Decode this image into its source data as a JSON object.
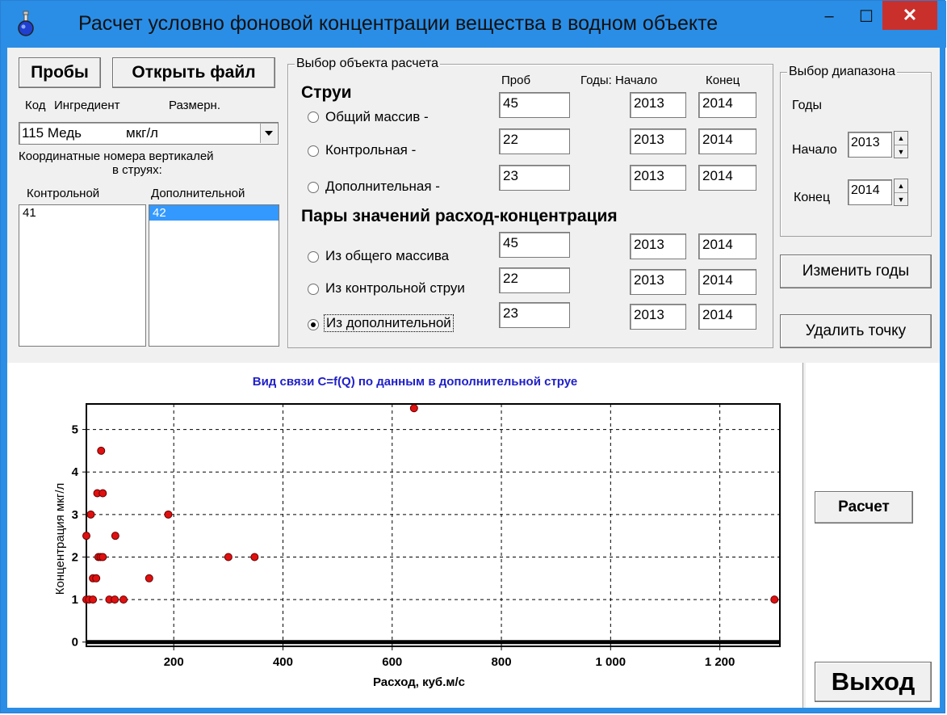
{
  "window": {
    "title": "Расчет условно фоновой концентрации вещества в водном объекте",
    "min": "–",
    "max": "☐",
    "close": "✕"
  },
  "left": {
    "btn_samples": "Пробы",
    "btn_open": "Открыть файл",
    "col_code": "Код",
    "col_ingredient": "Ингредиент",
    "col_units": "Размерн.",
    "combo_value": "115 Медь",
    "combo_units": "мкг/л",
    "coord_line1": "Координатные номера вертикалей",
    "coord_line2": "в струях:",
    "col_control": "Контрольной",
    "col_additional": "Дополнительной",
    "list_control": [
      "41"
    ],
    "list_additional": [
      "42"
    ]
  },
  "obj": {
    "group_title": "Выбор объекта расчета",
    "hdr_samples": "Проб",
    "hdr_years_start": "Годы: Начало",
    "hdr_end": "Конец",
    "jets_title": "Струи",
    "pairs_title": "Пары значений расход-концентрация",
    "rows": [
      {
        "label": "Общий массив -",
        "samples": "45",
        "start": "2013",
        "end": "2014",
        "checked": false
      },
      {
        "label": "Контрольная -",
        "samples": "22",
        "start": "2013",
        "end": "2014",
        "checked": false
      },
      {
        "label": "Дополнительная -",
        "samples": "23",
        "start": "2013",
        "end": "2014",
        "checked": false
      },
      {
        "label": "Из общего массива",
        "samples": "45",
        "start": "2013",
        "end": "2014",
        "checked": false
      },
      {
        "label": "Из контрольной струи",
        "samples": "22",
        "start": "2013",
        "end": "2014",
        "checked": false
      },
      {
        "label": "Из дополнительной",
        "samples": "23",
        "start": "2013",
        "end": "2014",
        "checked": true
      }
    ]
  },
  "range": {
    "group_title": "Выбор диапазона",
    "years": "Годы",
    "start_label": "Начало",
    "start_value": "2013",
    "end_label": "Конец",
    "end_value": "2014"
  },
  "buttons": {
    "change_years": "Изменить годы",
    "delete_point": "Удалить точку",
    "calc": "Расчет",
    "exit": "Выход"
  },
  "chart_data": {
    "type": "scatter",
    "title": "Вид связи C=f(Q) по данным в дополнительной струе",
    "xlabel": "Расход, куб.м/с",
    "ylabel": "Концентрация мкг/л",
    "xlim": [
      40,
      1310
    ],
    "ylim": [
      -0.1,
      5.6
    ],
    "xticks": [
      200,
      400,
      600,
      800,
      1000,
      1200
    ],
    "xtick_labels": [
      "200",
      "400",
      "600",
      "800",
      "1 000",
      "1 200"
    ],
    "yticks": [
      0,
      1,
      2,
      3,
      4,
      5
    ],
    "ytick_labels": [
      "0",
      "1",
      "2",
      "3",
      "4",
      "5"
    ],
    "grid": true,
    "baseline_y": 0,
    "point_color": "#e01010",
    "points": [
      {
        "x": 640,
        "y": 5.5
      },
      {
        "x": 67,
        "y": 4.5
      },
      {
        "x": 60,
        "y": 3.5
      },
      {
        "x": 70,
        "y": 3.5
      },
      {
        "x": 48,
        "y": 3.0
      },
      {
        "x": 190,
        "y": 3.0
      },
      {
        "x": 40,
        "y": 2.5
      },
      {
        "x": 93,
        "y": 2.5
      },
      {
        "x": 62,
        "y": 2.0
      },
      {
        "x": 66,
        "y": 2.0
      },
      {
        "x": 70,
        "y": 2.0
      },
      {
        "x": 300,
        "y": 2.0
      },
      {
        "x": 348,
        "y": 2.0
      },
      {
        "x": 52,
        "y": 1.5
      },
      {
        "x": 58,
        "y": 1.5
      },
      {
        "x": 155,
        "y": 1.5
      },
      {
        "x": 40,
        "y": 1.0
      },
      {
        "x": 45,
        "y": 1.0
      },
      {
        "x": 52,
        "y": 1.0
      },
      {
        "x": 82,
        "y": 1.0
      },
      {
        "x": 92,
        "y": 1.0
      },
      {
        "x": 108,
        "y": 1.0
      },
      {
        "x": 1300,
        "y": 1.0
      }
    ]
  }
}
